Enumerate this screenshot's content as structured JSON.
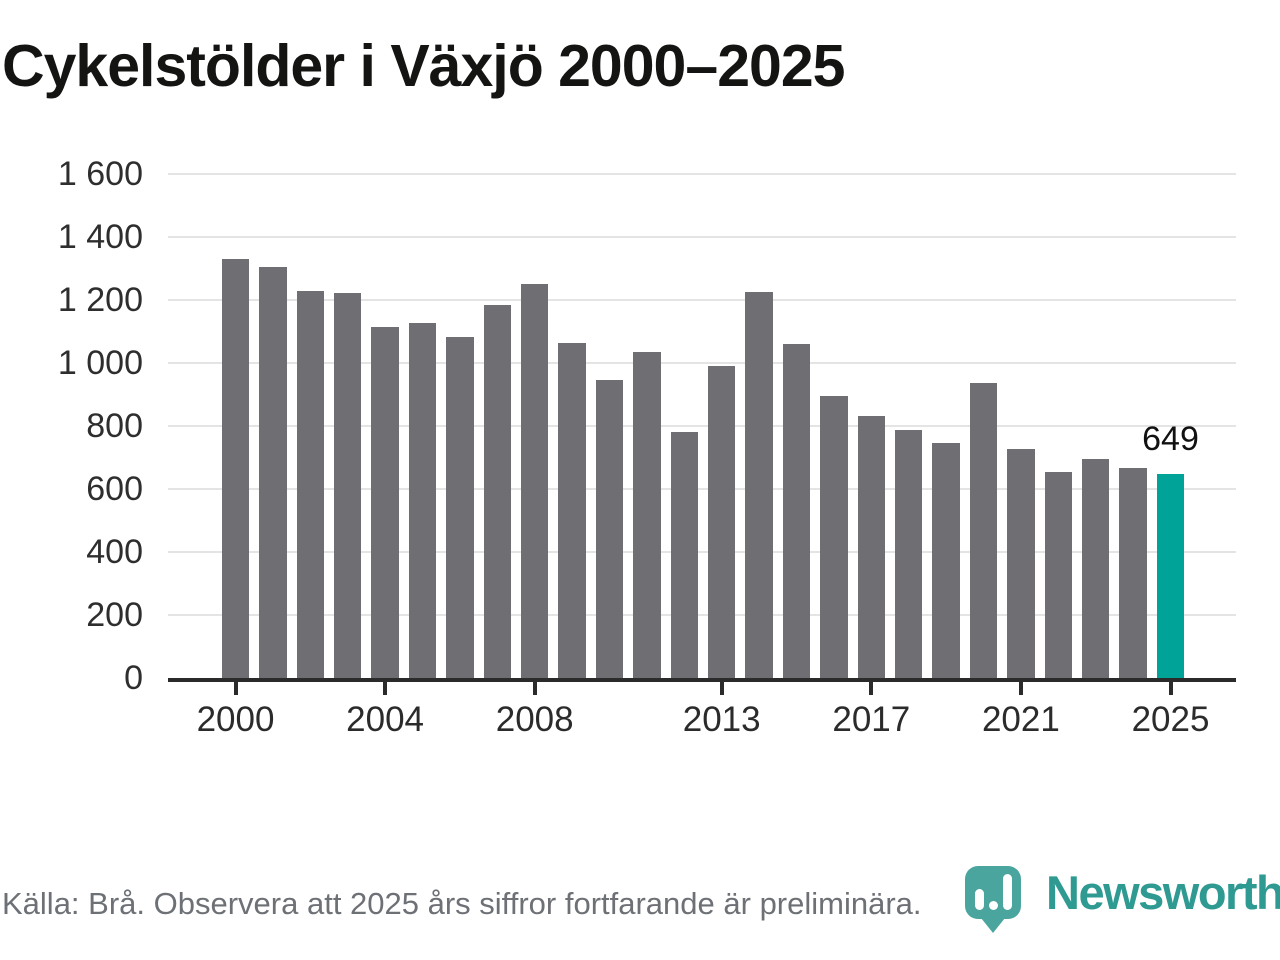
{
  "title": "Cykelstölder i Växjö 2000–2025",
  "annotation": {
    "last_value_label": "649"
  },
  "footer": {
    "source_note": "Källa: Brå. Observera att 2025 års siffror fortfarande är preliminära."
  },
  "branding": {
    "logo_text": "Newsworthy",
    "logo_icon": "map-pin-bar-chart-icon"
  },
  "colors": {
    "bar": "#6e6e73",
    "highlight": "#00a398",
    "grid": "#e4e4e4",
    "axis": "#2b2b2b",
    "title_text": "#141413",
    "footer_text": "#6d7075",
    "logo_badge": "#4ba59f",
    "logo_text": "#2f9a92"
  },
  "chart_data": {
    "type": "bar",
    "title": "Cykelstölder i Växjö 2000–2025",
    "xlabel": "",
    "ylabel": "",
    "categories": [
      2000,
      2001,
      2002,
      2003,
      2004,
      2005,
      2006,
      2007,
      2008,
      2009,
      2010,
      2011,
      2012,
      2013,
      2014,
      2015,
      2016,
      2017,
      2018,
      2019,
      2020,
      2021,
      2022,
      2023,
      2024,
      2025
    ],
    "values": [
      1330,
      1305,
      1230,
      1222,
      1115,
      1128,
      1082,
      1185,
      1250,
      1064,
      946,
      1036,
      780,
      990,
      1226,
      1060,
      895,
      832,
      788,
      745,
      936,
      726,
      655,
      694,
      666,
      649
    ],
    "highlight_category": 2025,
    "highlight_value": 649,
    "ylim": [
      0,
      1600
    ],
    "ytick_step": 200,
    "ytick_labels": [
      "0",
      "200",
      "400",
      "600",
      "800",
      "1 000",
      "1 200",
      "1 400",
      "1 600"
    ],
    "xtick_categories": [
      2000,
      2004,
      2008,
      2013,
      2017,
      2021,
      2025
    ],
    "grid": "horizontal",
    "legend": "none"
  }
}
